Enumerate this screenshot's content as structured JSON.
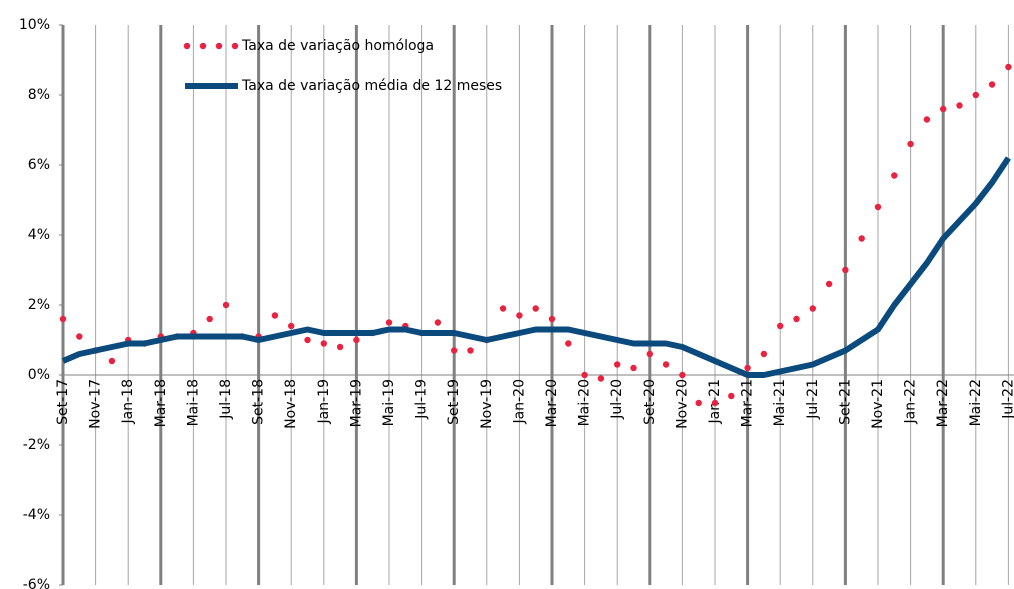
{
  "chart_data": {
    "type": "line",
    "categories": [
      "Set-17",
      null,
      "Nov-17",
      null,
      "Jan-18",
      null,
      "Mar-18",
      null,
      "Mai-18",
      null,
      "Jul-18",
      null,
      "Set-18",
      null,
      "Nov-18",
      null,
      "Jan-19",
      null,
      "Mar-19",
      null,
      "Mai-19",
      null,
      "Jul-19",
      null,
      "Set-19",
      null,
      "Nov-19",
      null,
      "Jan-20",
      null,
      "Mar-20",
      null,
      "Mai-20",
      null,
      "Jul-20",
      null,
      "Set-20",
      null,
      "Nov-20",
      null,
      "Jan-21",
      null,
      "Mar-21",
      null,
      "Mai-21",
      null,
      "Jul-21",
      null,
      "Set-21",
      null,
      "Nov-21",
      null,
      "Jan-22",
      null,
      "Mar-22",
      null,
      "Mai-22",
      null,
      "Jul-22"
    ],
    "series": [
      {
        "name": "Taxa de variação homóloga",
        "color": "#e8223f",
        "style": "dotted",
        "values": [
          1.6,
          1.1,
          0.7,
          0.4,
          1.0,
          0.9,
          1.1,
          1.1,
          1.2,
          1.6,
          2.0,
          1.1,
          1.1,
          1.7,
          1.4,
          1.0,
          0.9,
          0.8,
          1.0,
          1.2,
          1.5,
          1.4,
          1.2,
          1.5,
          0.7,
          0.7,
          1.0,
          1.9,
          1.7,
          1.9,
          1.6,
          0.9,
          0.0,
          -0.1,
          0.3,
          0.2,
          0.6,
          0.3,
          0.0,
          -0.8,
          -0.8,
          -0.6,
          0.2,
          0.6,
          1.4,
          1.6,
          1.9,
          2.6,
          3.0,
          3.9,
          4.8,
          5.7,
          6.6,
          7.3,
          7.6,
          7.7,
          8.0,
          8.3,
          8.8
        ]
      },
      {
        "name": "Taxa de variação média de 12 meses",
        "color": "#0b4a7d",
        "style": "solid",
        "values": [
          0.4,
          0.6,
          0.7,
          0.8,
          0.9,
          0.9,
          1.0,
          1.1,
          1.1,
          1.1,
          1.1,
          1.1,
          1.0,
          1.1,
          1.2,
          1.3,
          1.2,
          1.2,
          1.2,
          1.2,
          1.3,
          1.3,
          1.2,
          1.2,
          1.2,
          1.1,
          1.0,
          1.1,
          1.2,
          1.3,
          1.3,
          1.3,
          1.2,
          1.1,
          1.0,
          0.9,
          0.9,
          0.9,
          0.8,
          0.6,
          0.4,
          0.2,
          0.0,
          0.0,
          0.1,
          0.2,
          0.3,
          0.5,
          0.7,
          1.0,
          1.3,
          2.0,
          2.6,
          3.2,
          3.9,
          4.4,
          4.9,
          5.5,
          6.2
        ]
      }
    ],
    "ylim": [
      -6,
      10
    ],
    "yticks": [
      {
        "value": -6,
        "label": "-6%"
      },
      {
        "value": -4,
        "label": "-4%"
      },
      {
        "value": -2,
        "label": "-2%"
      },
      {
        "value": 0,
        "label": "0%"
      },
      {
        "value": 2,
        "label": "2%"
      },
      {
        "value": 4,
        "label": "4%"
      },
      {
        "value": 6,
        "label": "6%"
      },
      {
        "value": 8,
        "label": "8%"
      },
      {
        "value": 10,
        "label": "10%"
      }
    ],
    "xgrid": true,
    "legend": "top-left"
  }
}
